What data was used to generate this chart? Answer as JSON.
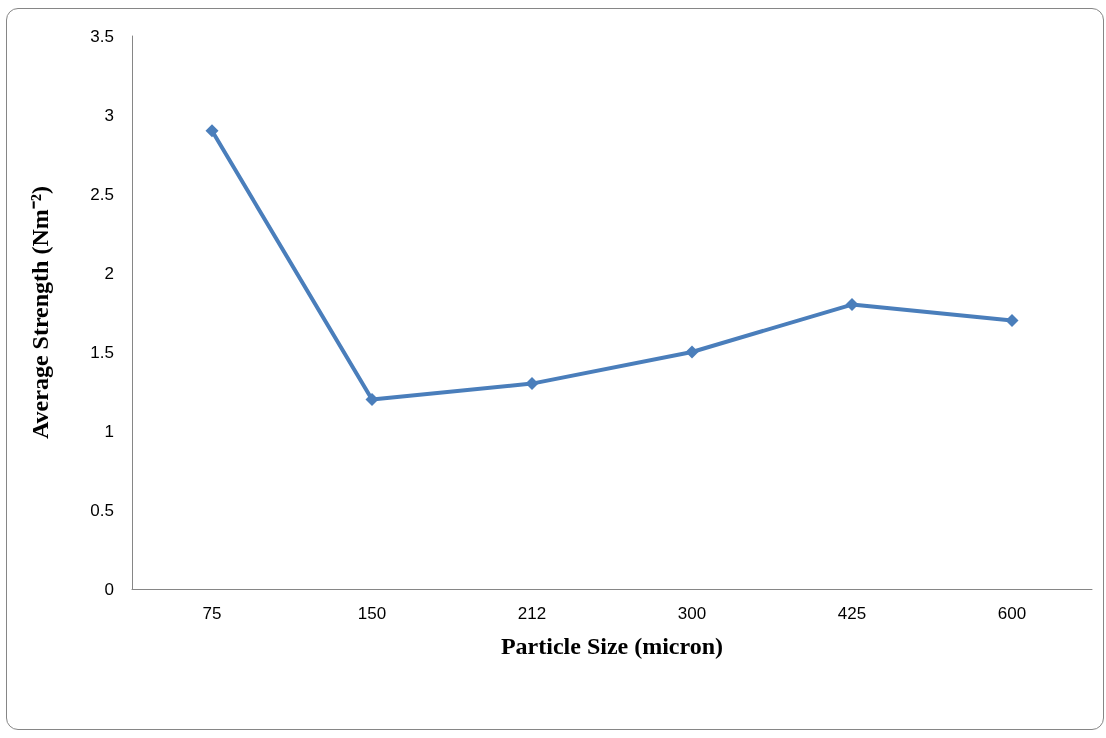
{
  "chart_data": {
    "type": "line",
    "xlabel": "Particle Size (micron)",
    "ylabel": "Average Strength (Nm⁻²)",
    "categories": [
      "75",
      "150",
      "212",
      "300",
      "425",
      "600"
    ],
    "series": [
      {
        "color": "#4a7ebb",
        "values": [
          2.9,
          1.2,
          1.3,
          1.5,
          1.8,
          1.7
        ]
      }
    ],
    "ylim": [
      0,
      3.5
    ],
    "yticks": [
      0,
      0.5,
      1,
      1.5,
      2,
      2.5,
      3,
      3.5
    ],
    "grid": false,
    "marker": "diamond",
    "line_style": "solid"
  }
}
